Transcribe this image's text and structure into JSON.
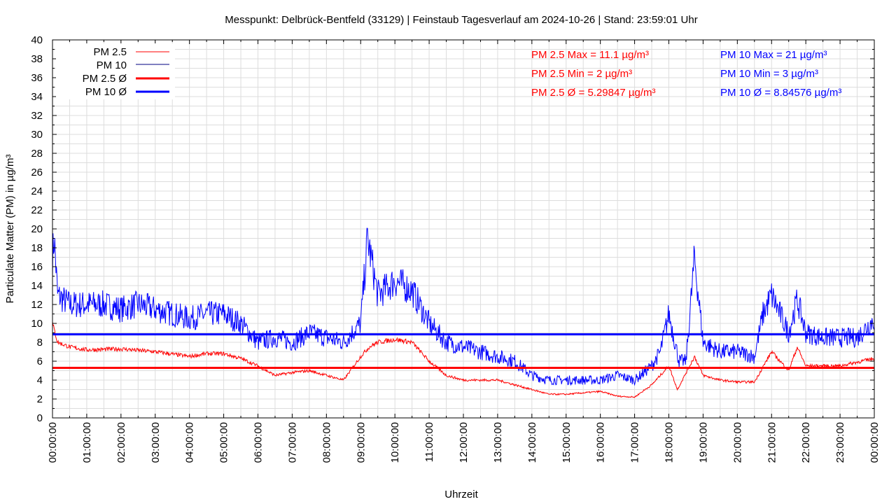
{
  "chart_data": {
    "type": "line",
    "title": "Messpunkt: Delbrück-Bentfeld (33129) | Feinstaub Tagesverlauf am 2024-10-26 | Stand: 23:59:01 Uhr",
    "xlabel": "Uhrzeit",
    "ylabel": "Particulate Matter (PM) in µg/m³",
    "ylim": [
      0,
      40
    ],
    "yticks": [
      0,
      2,
      4,
      6,
      8,
      10,
      12,
      14,
      16,
      18,
      20,
      22,
      24,
      26,
      28,
      30,
      32,
      34,
      36,
      38,
      40
    ],
    "xlim_hours": [
      0,
      24
    ],
    "xtick_labels": [
      "00:00:00",
      "01:00:00",
      "02:00:00",
      "03:00:00",
      "04:00:00",
      "05:00:00",
      "06:00:00",
      "07:00:00",
      "08:00:00",
      "09:00:00",
      "10:00:00",
      "11:00:00",
      "12:00:00",
      "13:00:00",
      "14:00:00",
      "15:00:00",
      "16:00:00",
      "17:00:00",
      "18:00:00",
      "19:00:00",
      "20:00:00",
      "21:00:00",
      "22:00:00",
      "23:00:00",
      "00:00:00"
    ],
    "grid": true,
    "legend_position": "top-left",
    "legend": [
      "PM 2.5",
      "PM 10",
      "PM 2.5 Ø",
      "PM 10 Ø"
    ],
    "series": [
      {
        "name": "PM 10",
        "color": "#0000ff",
        "x": [
          0,
          0.05,
          0.15,
          0.5,
          1,
          1.5,
          2,
          2.5,
          3,
          3.5,
          4,
          4.5,
          5,
          5.5,
          6,
          6.5,
          7,
          7.5,
          8,
          8.5,
          9,
          9.2,
          9.5,
          10,
          10.5,
          11,
          11.5,
          12,
          12.5,
          13,
          13.5,
          14,
          14.5,
          15,
          15.5,
          16,
          16.5,
          17,
          17.5,
          17.75,
          18,
          18.3,
          18.5,
          18.75,
          19,
          19.5,
          20,
          20.5,
          20.75,
          21,
          21.5,
          21.75,
          22,
          22.5,
          23,
          23.5,
          24
        ],
        "y": [
          17,
          19,
          13,
          12,
          12,
          12,
          11.5,
          12,
          11.5,
          11,
          10.5,
          11,
          11,
          10,
          8,
          8.5,
          8,
          9,
          8.5,
          8,
          10,
          19,
          13,
          14.5,
          13.5,
          10,
          8,
          7.5,
          7,
          6.5,
          6,
          4.5,
          4,
          4,
          4,
          4,
          4.5,
          4,
          5.5,
          7,
          11,
          6,
          6,
          17,
          8,
          7,
          7,
          6.5,
          11,
          13,
          9,
          12.5,
          9,
          8.5,
          8.5,
          8.5,
          10.5
        ]
      },
      {
        "name": "PM 2.5",
        "color": "#ff0000",
        "x": [
          0,
          0.15,
          0.5,
          1,
          2,
          3,
          4,
          4.5,
          5,
          5.5,
          6,
          6.5,
          7,
          7.5,
          8,
          8.5,
          9,
          9.25,
          9.5,
          10,
          10.5,
          11,
          11.5,
          12,
          13,
          13.5,
          14,
          14.5,
          15,
          16,
          16.5,
          17,
          17.5,
          18,
          18.25,
          18.75,
          19,
          19.5,
          20,
          20.5,
          21,
          21.5,
          21.75,
          22,
          23,
          24
        ],
        "y": [
          10,
          8,
          7.5,
          7.2,
          7.3,
          7,
          6.5,
          6.8,
          6.8,
          6.3,
          5.5,
          4.5,
          4.8,
          5,
          4.5,
          4,
          6.5,
          7.5,
          8,
          8.3,
          8,
          6,
          4.5,
          4,
          4,
          3.5,
          3,
          2.5,
          2.5,
          2.8,
          2.3,
          2.2,
          3.5,
          5.5,
          3,
          6.5,
          4.5,
          4,
          3.8,
          3.8,
          7,
          5,
          7.5,
          5.5,
          5.5,
          6.3
        ]
      },
      {
        "name": "PM 2.5 Ø",
        "color": "#ff0000",
        "value": 5.29847
      },
      {
        "name": "PM 10 Ø",
        "color": "#0000ff",
        "value": 8.84576
      }
    ],
    "annotations": {
      "pm25": [
        "PM 2.5 Max = 11.1 µg/m³",
        "PM 2.5 Min = 2 µg/m³",
        "PM 2.5 Ø = 5.29847 µg/m³"
      ],
      "pm10": [
        "PM 10 Max = 21 µg/m³",
        "PM 10 Min = 3 µg/m³",
        "PM 10 Ø = 8.84576 µg/m³"
      ]
    }
  }
}
